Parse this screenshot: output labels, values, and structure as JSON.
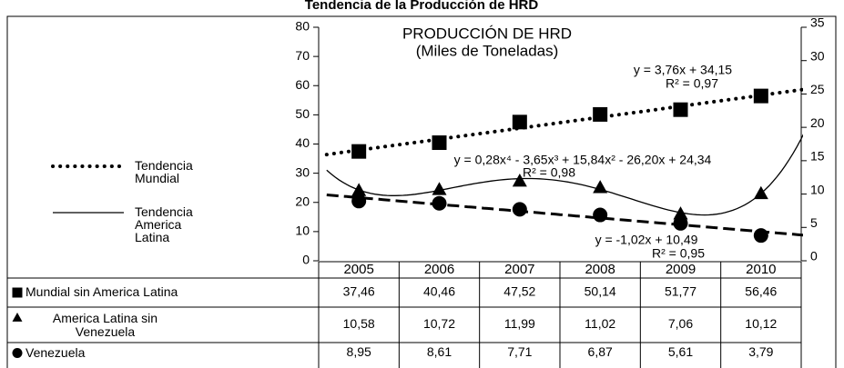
{
  "chart_data": {
    "type": "line",
    "title": "Tendencia de la Producción de HRD",
    "subtitle": "PRODUCCIÓN DE HRD",
    "unit_label": "(Miles de Toneladas)",
    "categories": [
      "2005",
      "2006",
      "2007",
      "2008",
      "2009",
      "2010"
    ],
    "ylim": [
      0,
      80
    ],
    "yticks": [
      0,
      10,
      20,
      30,
      40,
      50,
      60,
      70,
      80
    ],
    "y2lim": [
      0,
      35
    ],
    "y2ticks": [
      0,
      5,
      10,
      15,
      20,
      25,
      30,
      35
    ],
    "series": [
      {
        "name": "Mundial sin America Latina",
        "color": "#000000",
        "marker": "square",
        "axis": "y",
        "values": [
          37.46,
          40.46,
          47.52,
          50.14,
          51.77,
          56.46
        ],
        "value_labels": [
          "37,46",
          "40,46",
          "47,52",
          "50,14",
          "51,77",
          "56,46"
        ],
        "trend": {
          "order": 1,
          "style": "dotted",
          "label": "Tendencia Mundial",
          "equation": "y = 3,76x + 34,15",
          "r2": "R² = 0,97"
        }
      },
      {
        "name": "America Latina sin Venezuela",
        "color": "#000000",
        "marker": "triangle",
        "axis": "y2",
        "values": [
          10.58,
          10.72,
          11.99,
          11.02,
          7.06,
          10.12
        ],
        "value_labels": [
          "10,58",
          "10,72",
          "11,99",
          "11,02",
          "7,06",
          "10,12"
        ],
        "trend": {
          "order": 4,
          "style": "solid",
          "label": "Tendencia America Latina",
          "equation": "y = 0,28x⁴ - 3,65x³ + 15,84x² - 26,20x + 24,34",
          "r2": "R² = 0,98"
        }
      },
      {
        "name": "Venezuela",
        "color": "#000000",
        "marker": "circle",
        "axis": "y2",
        "values": [
          8.95,
          8.61,
          7.71,
          6.87,
          5.61,
          3.79
        ],
        "value_labels": [
          "8,95",
          "8,61",
          "7,71",
          "6,87",
          "5,61",
          "3,79"
        ],
        "trend": {
          "order": 1,
          "style": "dashed",
          "equation": "y = -1,02x + 10,49",
          "r2": "R² = 0,95"
        }
      }
    ]
  }
}
